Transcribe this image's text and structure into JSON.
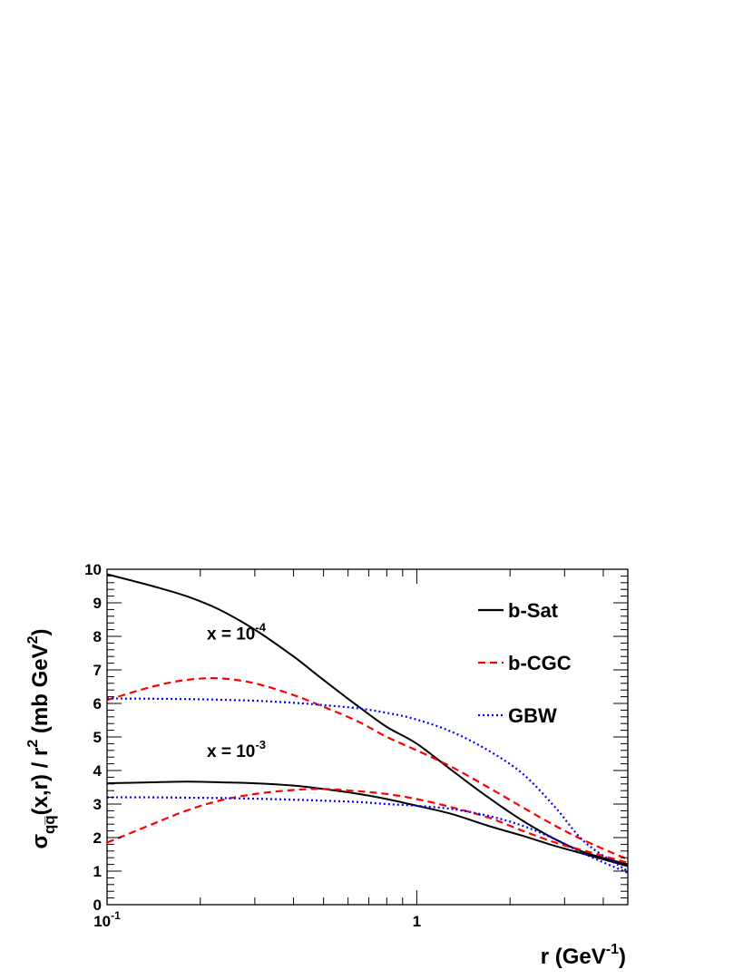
{
  "chart_data": {
    "type": "line",
    "title": "",
    "xlabel": "r  (GeV",
    "xlabel_sup": "-1",
    "xlabel_close": ")",
    "ylabel_sigma": "σ",
    "ylabel_sub": "qq̅",
    "ylabel_main": "(x,r) / r",
    "ylabel_sup": "2",
    "ylabel_units": "  (mb GeV",
    "ylabel_units_sup": "2",
    "ylabel_close": ")",
    "x_scale": "log",
    "xlim": [
      0.1,
      4.8
    ],
    "ylim": [
      0,
      10
    ],
    "grid": false,
    "legend_position": "top-right",
    "x_ticks": [
      {
        "value": 0.1,
        "base": "10",
        "exp": "-1"
      },
      {
        "value": 1,
        "base": "1",
        "exp": ""
      }
    ],
    "y_ticks": [
      {
        "value": 0,
        "label": "0"
      },
      {
        "value": 1,
        "label": "1"
      },
      {
        "value": 2,
        "label": "2"
      },
      {
        "value": 3,
        "label": "3"
      },
      {
        "value": 4,
        "label": "4"
      },
      {
        "value": 5,
        "label": "5"
      },
      {
        "value": 6,
        "label": "6"
      },
      {
        "value": 7,
        "label": "7"
      },
      {
        "value": 8,
        "label": "8"
      },
      {
        "value": 9,
        "label": "9"
      },
      {
        "value": 10,
        "label": "10"
      }
    ],
    "annotations": [
      {
        "base": "x = 10",
        "exp": "-4",
        "x": 0.21,
        "y": 7.9
      },
      {
        "base": "x = 10",
        "exp": "-3",
        "x": 0.21,
        "y": 4.4
      }
    ],
    "series": [
      {
        "name": "b-Sat",
        "color": "#000000",
        "dash": "solid",
        "x": [
          0.1,
          0.14,
          0.18,
          0.23,
          0.3,
          0.4,
          0.5,
          0.65,
          0.8,
          1.0,
          1.3,
          1.7,
          2.2,
          2.8,
          3.5,
          4.8
        ],
        "y_1e-4": [
          9.85,
          9.5,
          9.2,
          8.8,
          8.2,
          7.4,
          6.7,
          5.9,
          5.3,
          4.8,
          4.0,
          3.2,
          2.5,
          1.95,
          1.55,
          1.2
        ],
        "y_1e-3": [
          3.62,
          3.65,
          3.67,
          3.65,
          3.62,
          3.55,
          3.45,
          3.3,
          3.15,
          2.95,
          2.7,
          2.35,
          2.05,
          1.75,
          1.5,
          1.15
        ]
      },
      {
        "name": "b-CGC",
        "color": "#ff0000",
        "dash": "dashed",
        "x": [
          0.1,
          0.14,
          0.18,
          0.23,
          0.3,
          0.4,
          0.5,
          0.65,
          0.8,
          1.0,
          1.3,
          1.7,
          2.2,
          2.8,
          3.5,
          4.8
        ],
        "y_1e-4": [
          6.1,
          6.5,
          6.7,
          6.75,
          6.6,
          6.25,
          5.9,
          5.45,
          5.0,
          4.6,
          4.1,
          3.5,
          2.9,
          2.35,
          1.9,
          1.35
        ],
        "y_1e-3": [
          1.85,
          2.4,
          2.8,
          3.1,
          3.3,
          3.42,
          3.45,
          3.38,
          3.3,
          3.15,
          2.9,
          2.6,
          2.2,
          1.85,
          1.6,
          1.25
        ]
      },
      {
        "name": "GBW",
        "color": "#0000ff",
        "dash": "dotted",
        "x": [
          0.1,
          0.14,
          0.18,
          0.23,
          0.3,
          0.4,
          0.5,
          0.65,
          0.8,
          1.0,
          1.3,
          1.7,
          2.2,
          2.8,
          3.5,
          4.8
        ],
        "y_1e-4": [
          6.15,
          6.14,
          6.13,
          6.11,
          6.08,
          6.02,
          5.95,
          5.85,
          5.72,
          5.52,
          5.15,
          4.6,
          3.9,
          2.9,
          1.85,
          1.0
        ],
        "y_1e-3": [
          3.2,
          3.2,
          3.19,
          3.18,
          3.16,
          3.13,
          3.1,
          3.06,
          3.0,
          2.95,
          2.85,
          2.65,
          2.35,
          1.95,
          1.5,
          0.95
        ]
      }
    ]
  }
}
